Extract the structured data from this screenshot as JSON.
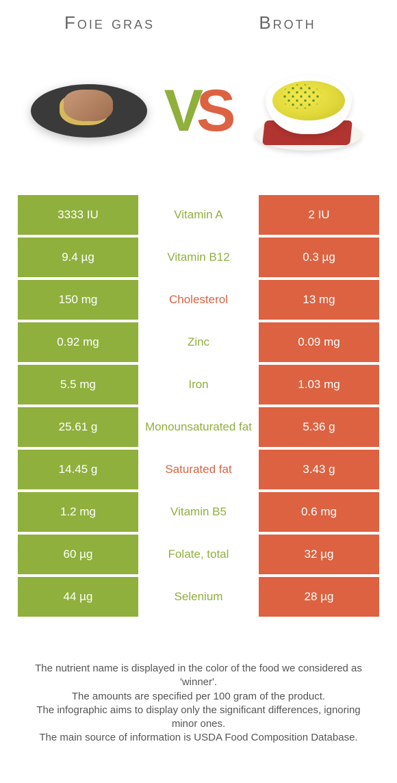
{
  "colors": {
    "left": "#8fb03d",
    "right": "#dd6241"
  },
  "food_left": {
    "title": "Foie gras"
  },
  "food_right": {
    "title": "Broth"
  },
  "vs": {
    "v": "V",
    "s": "S"
  },
  "rows": [
    {
      "left": "3333 IU",
      "label": "Vitamin A",
      "right": "2 IU",
      "winner": "left"
    },
    {
      "left": "9.4 µg",
      "label": "Vitamin B12",
      "right": "0.3 µg",
      "winner": "left"
    },
    {
      "left": "150 mg",
      "label": "Cholesterol",
      "right": "13 mg",
      "winner": "right"
    },
    {
      "left": "0.92 mg",
      "label": "Zinc",
      "right": "0.09 mg",
      "winner": "left"
    },
    {
      "left": "5.5 mg",
      "label": "Iron",
      "right": "1.03 mg",
      "winner": "left"
    },
    {
      "left": "25.61 g",
      "label": "Monounsaturated fat",
      "right": "5.36 g",
      "winner": "left"
    },
    {
      "left": "14.45 g",
      "label": "Saturated fat",
      "right": "3.43 g",
      "winner": "right"
    },
    {
      "left": "1.2 mg",
      "label": "Vitamin B5",
      "right": "0.6 mg",
      "winner": "left"
    },
    {
      "left": "60 µg",
      "label": "Folate, total",
      "right": "32 µg",
      "winner": "left"
    },
    {
      "left": "44 µg",
      "label": "Selenium",
      "right": "28 µg",
      "winner": "left"
    }
  ],
  "footer": {
    "l1": "The nutrient name is displayed in the color of the food we considered as 'winner'.",
    "l2": "The amounts are specified per 100 gram of the product.",
    "l3": "The infographic aims to display only the significant differences, ignoring minor ones.",
    "l4": "The main source of information is USDA Food Composition Database."
  }
}
